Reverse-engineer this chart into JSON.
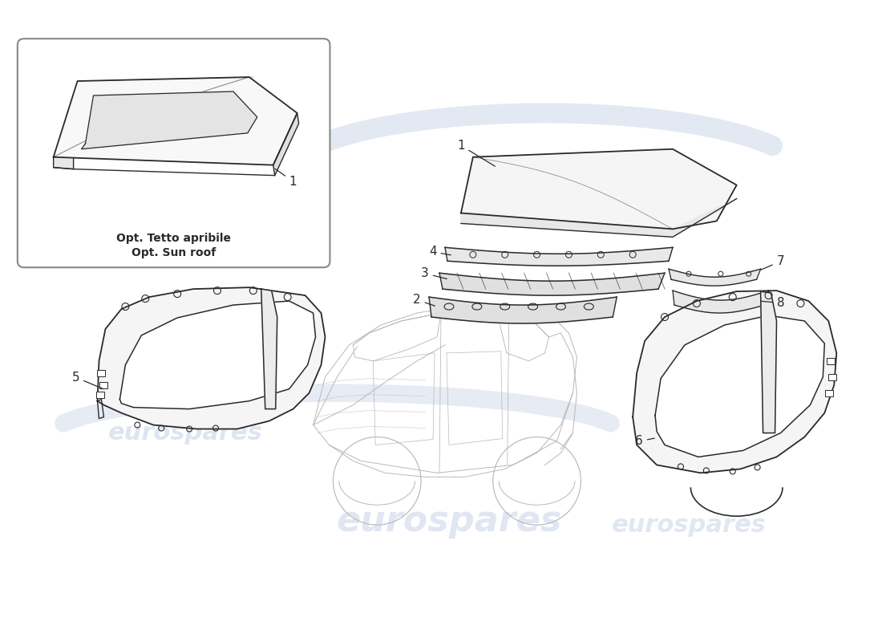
{
  "background_color": "#ffffff",
  "watermark_text": "eurospares",
  "watermark_color": "#c8d4e8",
  "box_label_line1": "Opt. Tetto apribile",
  "box_label_line2": "Opt. Sun roof",
  "line_color": "#2a2a2a",
  "light_line_color": "#c0c0c0",
  "label_fontsize": 10,
  "watermark_fontsize_large": 32,
  "watermark_fontsize_small": 22,
  "part_numbers": [
    "1",
    "2",
    "3",
    "4",
    "5",
    "6",
    "7",
    "8"
  ]
}
